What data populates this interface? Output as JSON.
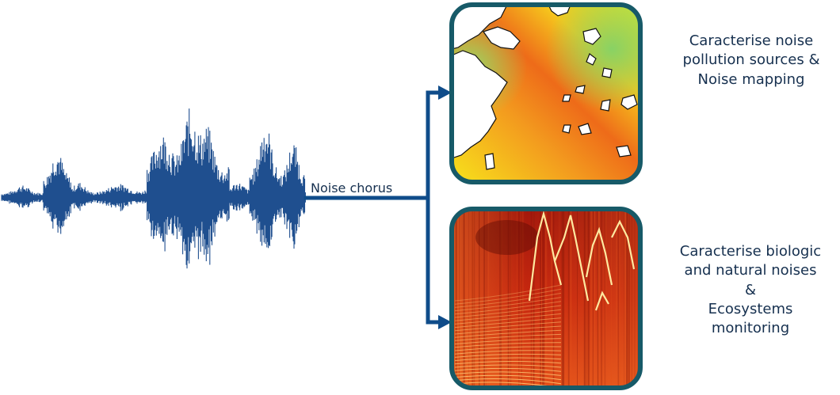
{
  "flow": {
    "source_label": "Noise chorus"
  },
  "outputs": [
    {
      "lines": [
        "Caracterise noise",
        "pollution sources &",
        "Noise mapping"
      ]
    },
    {
      "lines": [
        "Caracterise biologic",
        "and natural noises",
        "&",
        "Ecosystems",
        "monitoring"
      ]
    }
  ],
  "colors": {
    "arrow": "#0f4c8a",
    "waveform": "#1f4f8f",
    "panel_border": "#175a68",
    "text": "#16304f",
    "map_land": "#ffffff",
    "map_sea_warm": "#f28c1e",
    "map_sea_cool": "#7fd06a",
    "spectrogram_base": "#b91f0f",
    "spectrogram_highlight": "#ffe9a0"
  }
}
